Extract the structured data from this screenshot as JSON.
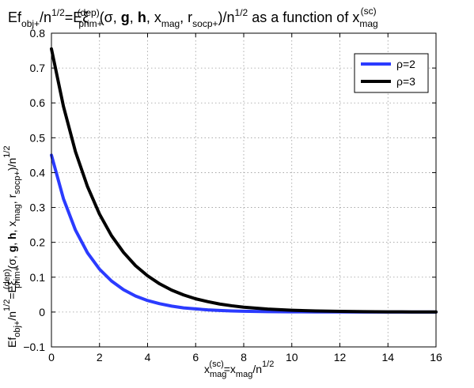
{
  "chart_data": {
    "type": "line",
    "title": {
      "main": "Ef",
      "sub1": "obj+",
      "mid1": "/n",
      "sup1": "1/2",
      "mid2": "=Eξ",
      "sub2": "prim+",
      "sup2": "(dep)",
      "mid3": "(σ, ",
      "g": "g",
      "comma1": ", ",
      "h": "h",
      "mid4": ", x",
      "sub3": "mag",
      "mid5": ", r",
      "sub4": "socp+",
      "mid6": ")/n",
      "sup3": "1/2",
      "mid7": " as a function of x",
      "sub5": "mag",
      "sup4": "(sc)"
    },
    "xlabel": {
      "p1": "x",
      "sub1": "mag",
      "sup1": "(sc)",
      "p2": "=x",
      "sub2": "mag",
      "p3": "/n",
      "sup2": "1/2"
    },
    "ylabel": {
      "p1": "Ef",
      "sub1": "obj+",
      "p2": "/n",
      "sup1": "1/2",
      "p3": "=Eξ",
      "sub2": "prim+",
      "sup2": "(dep)",
      "p4": "(σ, ",
      "g": "g",
      "c1": ", ",
      "h": "h",
      "p5": ", x",
      "sub3": "mag",
      "p6": ", r",
      "sub4": "socp+",
      "p7": ")/n",
      "sup3": "1/2"
    },
    "xlim": [
      0,
      16
    ],
    "ylim": [
      -0.1,
      0.8
    ],
    "xticks": [
      0,
      2,
      4,
      6,
      8,
      10,
      12,
      14,
      16
    ],
    "yticks": [
      -0.1,
      0,
      0.1,
      0.2,
      0.3,
      0.4,
      0.5,
      0.6,
      0.7,
      0.8
    ],
    "ytick_labels": [
      "−0.1",
      "0",
      "0.1",
      "0.2",
      "0.3",
      "0.4",
      "0.5",
      "0.6",
      "0.7",
      "0.8"
    ],
    "xtick_labels": [
      "0",
      "2",
      "4",
      "6",
      "8",
      "10",
      "12",
      "14",
      "16"
    ],
    "grid": true,
    "legend_position": "top-right",
    "series": [
      {
        "name": "ρ=2",
        "color": "#2b3bff",
        "x": [
          0,
          0.5,
          1,
          1.5,
          2,
          2.5,
          3,
          3.5,
          4,
          4.5,
          5,
          5.5,
          6,
          6.5,
          7,
          7.5,
          8,
          9,
          10,
          11,
          12,
          13,
          14,
          15,
          16
        ],
        "y": [
          0.45,
          0.325,
          0.235,
          0.17,
          0.123,
          0.089,
          0.064,
          0.046,
          0.033,
          0.024,
          0.017,
          0.012,
          0.009,
          0.0063,
          0.0045,
          0.0032,
          0.0023,
          0.0012,
          0.0006,
          0.0003,
          0.0002,
          0.0001,
          5e-05,
          2e-05,
          1e-05
        ]
      },
      {
        "name": "ρ=3",
        "color": "#000000",
        "x": [
          0,
          0.5,
          1,
          1.5,
          2,
          2.5,
          3,
          3.5,
          4,
          4.5,
          5,
          5.5,
          6,
          6.5,
          7,
          7.5,
          8,
          9,
          10,
          11,
          12,
          13,
          14,
          15,
          16
        ],
        "y": [
          0.755,
          0.59,
          0.46,
          0.36,
          0.281,
          0.219,
          0.171,
          0.133,
          0.104,
          0.081,
          0.063,
          0.049,
          0.038,
          0.03,
          0.023,
          0.018,
          0.014,
          0.0085,
          0.0052,
          0.0031,
          0.0019,
          0.0011,
          0.0007,
          0.0004,
          0.0002
        ]
      }
    ]
  }
}
